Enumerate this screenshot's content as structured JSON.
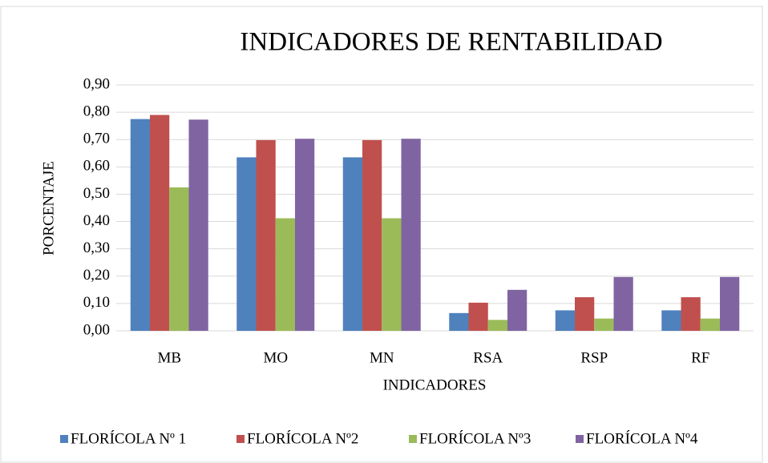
{
  "chart_data": {
    "type": "bar",
    "title": "INDICADORES DE RENTABILIDAD",
    "x_label": "INDICADORES",
    "y_label": "PORCENTAJE",
    "categories": [
      "MB",
      "MO",
      "MN",
      "RSA",
      "RSP",
      "RF"
    ],
    "series": [
      {
        "name": "FLORÍCOLA Nº 1",
        "color": "#4f81bd",
        "values": [
          0.775,
          0.635,
          0.635,
          0.065,
          0.075,
          0.075
        ]
      },
      {
        "name": "FLORÍCOLA Nº2",
        "color": "#c0504d",
        "values": [
          0.79,
          0.698,
          0.698,
          0.103,
          0.123,
          0.123
        ]
      },
      {
        "name": "FLORÍCOLA Nº3",
        "color": "#9bbb59",
        "values": [
          0.525,
          0.412,
          0.412,
          0.04,
          0.045,
          0.045
        ]
      },
      {
        "name": "FLORÍCOLA Nº4",
        "color": "#8064a2",
        "values": [
          0.773,
          0.703,
          0.703,
          0.15,
          0.197,
          0.197
        ]
      }
    ],
    "ylim": [
      0,
      0.9
    ],
    "yticks": [
      {
        "value": 0,
        "label": "0,00"
      },
      {
        "value": 0.1,
        "label": "0,10"
      },
      {
        "value": 0.2,
        "label": "0,20"
      },
      {
        "value": 0.3,
        "label": "0,30"
      },
      {
        "value": 0.4,
        "label": "0,40"
      },
      {
        "value": 0.5,
        "label": "0,50"
      },
      {
        "value": 0.6,
        "label": "0,60"
      },
      {
        "value": 0.7,
        "label": "0,70"
      },
      {
        "value": 0.8,
        "label": "0,80"
      },
      {
        "value": 0.9,
        "label": "0,90"
      }
    ],
    "grid": true,
    "legend": "bottom"
  }
}
